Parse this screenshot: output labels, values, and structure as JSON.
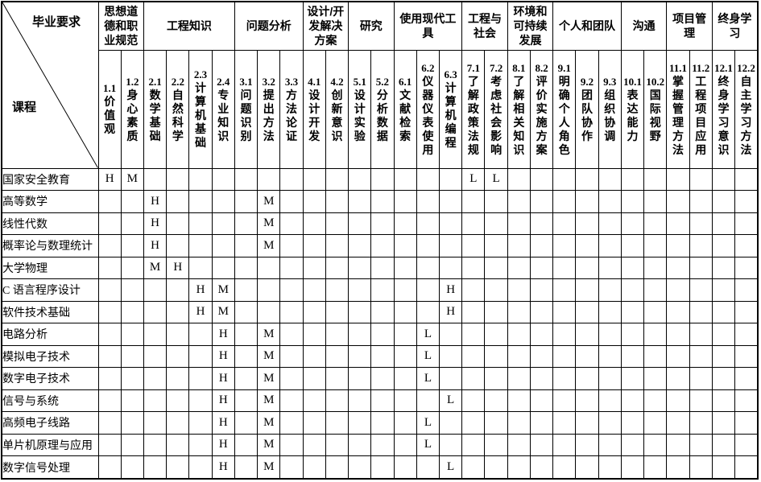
{
  "table": {
    "corner": {
      "top_label": "毕业要求",
      "bottom_label": "课程"
    },
    "column_groups": [
      {
        "label": "思想道德和职业规范",
        "span": 2
      },
      {
        "label": "工程知识",
        "span": 4
      },
      {
        "label": "问题分析",
        "span": 3
      },
      {
        "label": "设计/开发解决方案",
        "span": 2
      },
      {
        "label": "研究",
        "span": 2
      },
      {
        "label": "使用现代工具",
        "span": 3
      },
      {
        "label": "工程与社会",
        "span": 2
      },
      {
        "label": "环境和可持续发展",
        "span": 2
      },
      {
        "label": "个人和团队",
        "span": 3
      },
      {
        "label": "沟通",
        "span": 2
      },
      {
        "label": "项目管理",
        "span": 2
      },
      {
        "label": "终身学习",
        "span": 2
      }
    ],
    "columns": [
      {
        "id": "1.1",
        "label": "价值观"
      },
      {
        "id": "1.2",
        "label": "身心素质"
      },
      {
        "id": "2.1",
        "label": "数学基础"
      },
      {
        "id": "2.2",
        "label": "自然科学"
      },
      {
        "id": "2.3",
        "label": "计算机基础"
      },
      {
        "id": "2.4",
        "label": "专业知识"
      },
      {
        "id": "3.1",
        "label": "问题识别"
      },
      {
        "id": "3.2",
        "label": "提出方法"
      },
      {
        "id": "3.3",
        "label": "方法论证"
      },
      {
        "id": "4.1",
        "label": "设计开发"
      },
      {
        "id": "4.2",
        "label": "创新意识"
      },
      {
        "id": "5.1",
        "label": "设计实验"
      },
      {
        "id": "5.2",
        "label": "分析数据"
      },
      {
        "id": "6.1",
        "label": "文献检索"
      },
      {
        "id": "6.2",
        "label": "仪器仪表使用"
      },
      {
        "id": "6.3",
        "label": "计算机编程"
      },
      {
        "id": "7.1",
        "label": "了解政策法规"
      },
      {
        "id": "7.2",
        "label": "考虑社会影响"
      },
      {
        "id": "8.1",
        "label": "了解相关知识"
      },
      {
        "id": "8.2",
        "label": "评价实施方案"
      },
      {
        "id": "9.1",
        "label": "明确个人角色"
      },
      {
        "id": "9.2",
        "label": "团队协作"
      },
      {
        "id": "9.3",
        "label": "组织协调"
      },
      {
        "id": "10.1",
        "label": "表达能力"
      },
      {
        "id": "10.2",
        "label": "国际视野"
      },
      {
        "id": "11.1",
        "label": "掌握管理方法"
      },
      {
        "id": "11.2",
        "label": "工程项目应用"
      },
      {
        "id": "12.1",
        "label": "终身学习意识"
      },
      {
        "id": "12.2",
        "label": "自主学习方法"
      }
    ],
    "rows": [
      {
        "course": "国家安全教育",
        "marks": {
          "1.1": "H",
          "1.2": "M",
          "7.1": "L",
          "7.2": "L"
        }
      },
      {
        "course": "高等数学",
        "marks": {
          "2.1": "H",
          "3.2": "M"
        }
      },
      {
        "course": "线性代数",
        "marks": {
          "2.1": "H",
          "3.2": "M"
        }
      },
      {
        "course": "概率论与数理统计",
        "marks": {
          "2.1": "H",
          "3.2": "M"
        }
      },
      {
        "course": "大学物理",
        "marks": {
          "2.1": "M",
          "2.2": "H"
        }
      },
      {
        "course": "C 语言程序设计",
        "marks": {
          "2.3": "H",
          "2.4": "M",
          "6.3": "H"
        }
      },
      {
        "course": "软件技术基础",
        "marks": {
          "2.3": "H",
          "2.4": "M",
          "6.3": "H"
        }
      },
      {
        "course": "电路分析",
        "marks": {
          "2.4": "H",
          "3.2": "M",
          "6.2": "L"
        }
      },
      {
        "course": "模拟电子技术",
        "marks": {
          "2.4": "H",
          "3.2": "M",
          "6.2": "L"
        }
      },
      {
        "course": "数字电子技术",
        "marks": {
          "2.4": "H",
          "3.2": "M",
          "6.2": "L"
        }
      },
      {
        "course": "信号与系统",
        "marks": {
          "2.4": "H",
          "3.2": "M",
          "6.3": "L"
        }
      },
      {
        "course": "高频电子线路",
        "marks": {
          "2.4": "H",
          "3.2": "M",
          "6.2": "L"
        }
      },
      {
        "course": "单片机原理与应用",
        "marks": {
          "2.4": "H",
          "3.2": "M",
          "6.2": "L"
        }
      },
      {
        "course": "数字信号处理",
        "marks": {
          "2.4": "H",
          "3.2": "M",
          "6.3": "L"
        }
      }
    ],
    "colors": {
      "border": "#000000",
      "background": "#ffffff",
      "text": "#000000"
    }
  }
}
